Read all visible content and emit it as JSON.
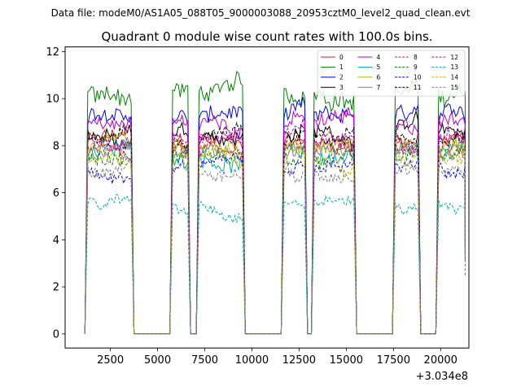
{
  "suptitle": "Data file: modeM0/AS1A05_088T05_9000003088_20953cztM0_level2_quad_clean.evt",
  "chart_data": {
    "type": "line",
    "title": "Quadrant 0 module wise count rates with 100.0s bins.",
    "xlabel": "",
    "ylabel": "",
    "x_offset_label": "+3.034e8",
    "xlim": [
      100,
      21500
    ],
    "ylim": [
      -0.6,
      12.2
    ],
    "xticks": [
      2500,
      5000,
      7500,
      10000,
      12500,
      15000,
      17500,
      20000
    ],
    "xtick_labels": [
      "2500",
      "5000",
      "7500",
      "10000",
      "12500",
      "15000",
      "17500",
      "20000"
    ],
    "yticks": [
      0,
      2,
      4,
      6,
      8,
      10,
      12
    ],
    "ytick_labels": [
      "0",
      "2",
      "4",
      "6",
      "8",
      "10",
      "12"
    ],
    "grid": false,
    "legend_position": "top-right",
    "legend_columns": 4,
    "segments": [
      {
        "start": 1300,
        "end": 3600
      },
      {
        "start": 5800,
        "end": 6600
      },
      {
        "start": 7200,
        "end": 9500
      },
      {
        "start": 11700,
        "end": 12800
      },
      {
        "start": 13300,
        "end": 15400
      },
      {
        "start": 17600,
        "end": 18800
      },
      {
        "start": 19900,
        "end": 21300
      }
    ],
    "series": [
      {
        "name": "0",
        "level": 8.2,
        "color": "#d62020",
        "dash": "solid"
      },
      {
        "name": "1",
        "level": 10.3,
        "color": "#008000",
        "dash": "solid"
      },
      {
        "name": "2",
        "level": 9.2,
        "color": "#0000ff",
        "dash": "solid"
      },
      {
        "name": "3",
        "level": 8.6,
        "color": "#000000",
        "dash": "solid"
      },
      {
        "name": "4",
        "level": 9.0,
        "color": "#c000c0",
        "dash": "solid"
      },
      {
        "name": "5",
        "level": 7.6,
        "color": "#00b0a0",
        "dash": "solid"
      },
      {
        "name": "6",
        "level": 8.0,
        "color": "#b8b800",
        "dash": "solid"
      },
      {
        "name": "7",
        "level": 7.8,
        "color": "#808080",
        "dash": "solid"
      },
      {
        "name": "8",
        "level": 7.9,
        "color": "#d62020",
        "dash": "dashed"
      },
      {
        "name": "9",
        "level": 7.5,
        "color": "#008000",
        "dash": "dashed"
      },
      {
        "name": "10",
        "level": 7.0,
        "color": "#0000ff",
        "dash": "dashed"
      },
      {
        "name": "11",
        "level": 8.3,
        "color": "#000000",
        "dash": "dashed"
      },
      {
        "name": "12",
        "level": 8.4,
        "color": "#c000c0",
        "dash": "dashed"
      },
      {
        "name": "13",
        "level": 5.5,
        "color": "#00b0a0",
        "dash": "dashed"
      },
      {
        "name": "14",
        "level": 7.4,
        "color": "#b8b800",
        "dash": "dashed"
      },
      {
        "name": "15",
        "level": 6.9,
        "color": "#808080",
        "dash": "dashed"
      }
    ]
  }
}
